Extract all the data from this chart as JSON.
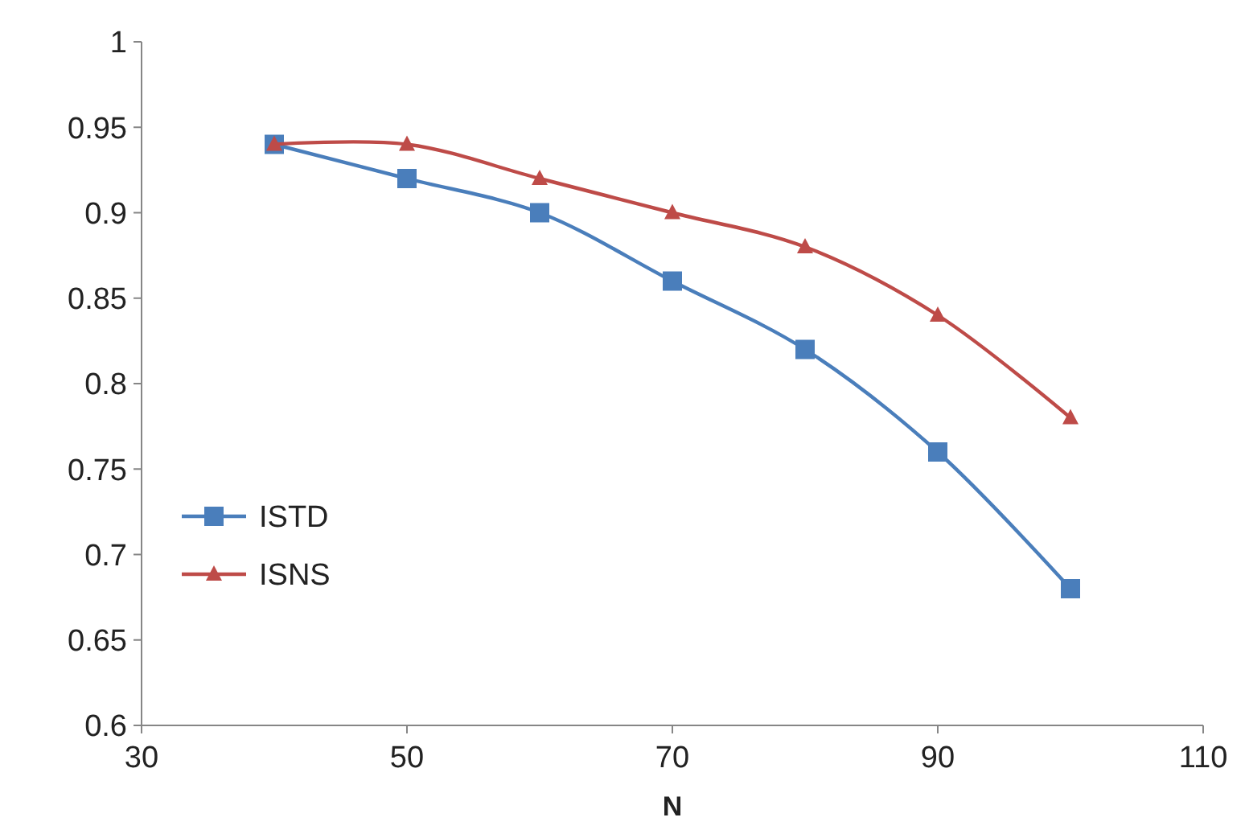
{
  "chart_data": {
    "type": "line",
    "xlabel": "N",
    "x": [
      40,
      50,
      60,
      70,
      80,
      90,
      100
    ],
    "xlim": [
      30,
      110
    ],
    "xticks": [
      30,
      50,
      70,
      90,
      110
    ],
    "ylim": [
      0.6,
      1
    ],
    "yticks": [
      0.6,
      0.65,
      0.7,
      0.75,
      0.8,
      0.85,
      0.9,
      0.95,
      1
    ],
    "grid": false,
    "legend": "bottom left",
    "series": [
      {
        "name": "ISTD",
        "color": "#4a7ebb",
        "marker": "square",
        "values": [
          0.94,
          0.92,
          0.9,
          0.86,
          0.82,
          0.76,
          0.68
        ]
      },
      {
        "name": "ISNS",
        "color": "#be4b48",
        "marker": "triangle",
        "values": [
          0.94,
          0.94,
          0.92,
          0.9,
          0.88,
          0.84,
          0.78
        ]
      }
    ]
  }
}
